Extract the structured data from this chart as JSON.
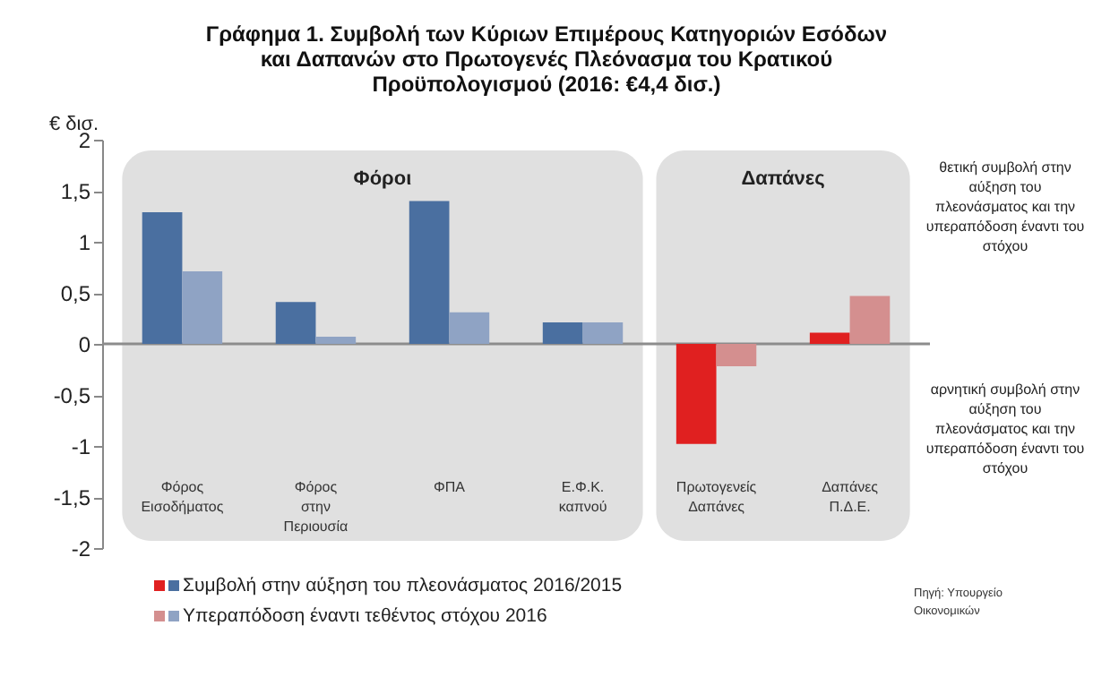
{
  "chart_data": {
    "type": "bar",
    "title": "Γράφημα 1. Συμβολή των Κύριων Επιμέρους Κατηγοριών Εσόδων και Δαπανών στο Πρωτογενές Πλεόνασμα του Κρατικού Προϋπολογισμού (2016: €4,4 δισ.)",
    "ylabel": "€ δισ.",
    "categories": [
      "Φόρος Εισοδήματος",
      "Φόρος στην Περιουσία",
      "ΦΠΑ",
      "Ε.Φ.Κ. καπνού",
      "Πρωτογενείς Δαπάνες",
      "Δαπάνες Π.Δ.Ε."
    ],
    "series": [
      {
        "name": "Συμβολή στην αύξηση του πλεονάσματος 2016/2015",
        "colors": [
          "#4a6fa0",
          "#4a6fa0",
          "#4a6fa0",
          "#4a6fa0",
          "#e02020",
          "#e02020"
        ],
        "values": [
          1.29,
          0.41,
          1.4,
          0.21,
          -0.98,
          0.11
        ]
      },
      {
        "name": "Υπεραπόδοση έναντι τεθέντος στόχου 2016",
        "colors": [
          "#8fa3c4",
          "#8fa3c4",
          "#8fa3c4",
          "#8fa3c4",
          "#d48f8f",
          "#d48f8f"
        ],
        "values": [
          0.71,
          0.07,
          0.31,
          0.21,
          -0.22,
          0.47
        ]
      }
    ],
    "ylim": [
      -2,
      2
    ],
    "yticks": [
      -2,
      {
        "value": -1.5,
        "label": "-1,5"
      },
      -1,
      {
        "value": -0.5,
        "label": "-0,5"
      },
      0,
      {
        "value": 0.5,
        "label": "0,5"
      },
      1,
      {
        "value": 1.5,
        "label": "1,5"
      },
      2
    ],
    "bands": [
      {
        "axis": "x",
        "from": "Φόρος Εισοδήματος",
        "to": "Ε.Φ.Κ. καπνού",
        "label": "Φόροι",
        "color": "#e0e0e0"
      },
      {
        "axis": "x",
        "from": "Πρωτογενείς Δαπάνες",
        "to": "Δαπάνες Π.Δ.Ε.",
        "label": "Δαπάνες",
        "color": "#e0e0e0"
      }
    ],
    "ref_lines": [
      {
        "axis": "y",
        "value": 0,
        "color": "#8c8c8c"
      }
    ],
    "annotations": [
      "θετική συμβολή στην αύξηση του πλεονάσματος και την υπεραπόδοση έναντι του στόχου",
      "αρνητική συμβολή στην αύξηση του πλεονάσματος και την υπεραπόδοση έναντι του στόχου",
      "Πηγή: Υπουργείο Οικονομικών"
    ],
    "legend": "bottom"
  }
}
